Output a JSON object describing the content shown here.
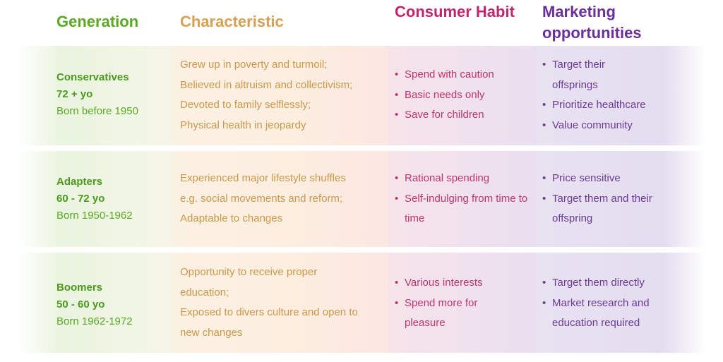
{
  "headers": {
    "generation": "Generation",
    "characteristic": "Characteristic",
    "consumer_habit": "Consumer Habit",
    "marketing": "Marketing opportunities"
  },
  "rows": [
    {
      "name": "Conservatives",
      "age": "72 + yo",
      "born": "Born before 1950",
      "characteristic": [
        "Grew up in poverty and turmoil;",
        "Believed in altruism and collectivism;",
        "Devoted to family selflessly;",
        "Physical health in jeopardy"
      ],
      "consumer_habit": [
        "Spend with caution",
        "Basic needs only",
        "Save for children"
      ],
      "marketing": [
        "Target their offsprings",
        "Prioritize healthcare",
        "Value community"
      ]
    },
    {
      "name": "Adapters",
      "age": "60 - 72 yo",
      "born": "Born 1950-1962",
      "characteristic": [
        "Experienced major lifestyle shuffles",
        "e.g. social movements and reform;",
        "Adaptable to changes"
      ],
      "consumer_habit": [
        "Rational spending",
        "Self-indulging from time to time"
      ],
      "marketing": [
        "Price sensitive",
        "Target them and their offspring"
      ]
    },
    {
      "name": "Boomers",
      "age": "50 - 60 yo",
      "born": "Born 1962-1972",
      "characteristic": [
        "Opportunity to receive proper",
        "education;",
        "Exposed to divers culture and open to",
        "new changes"
      ],
      "consumer_habit": [
        "Various interests",
        "Spend more for pleasure"
      ],
      "marketing": [
        "Target them directly",
        "Market research and education required"
      ]
    }
  ],
  "colors": {
    "generation": "#5aa823",
    "characteristic": "#d6a055",
    "consumer_habit": "#c4246d",
    "marketing": "#6a2f9a"
  }
}
